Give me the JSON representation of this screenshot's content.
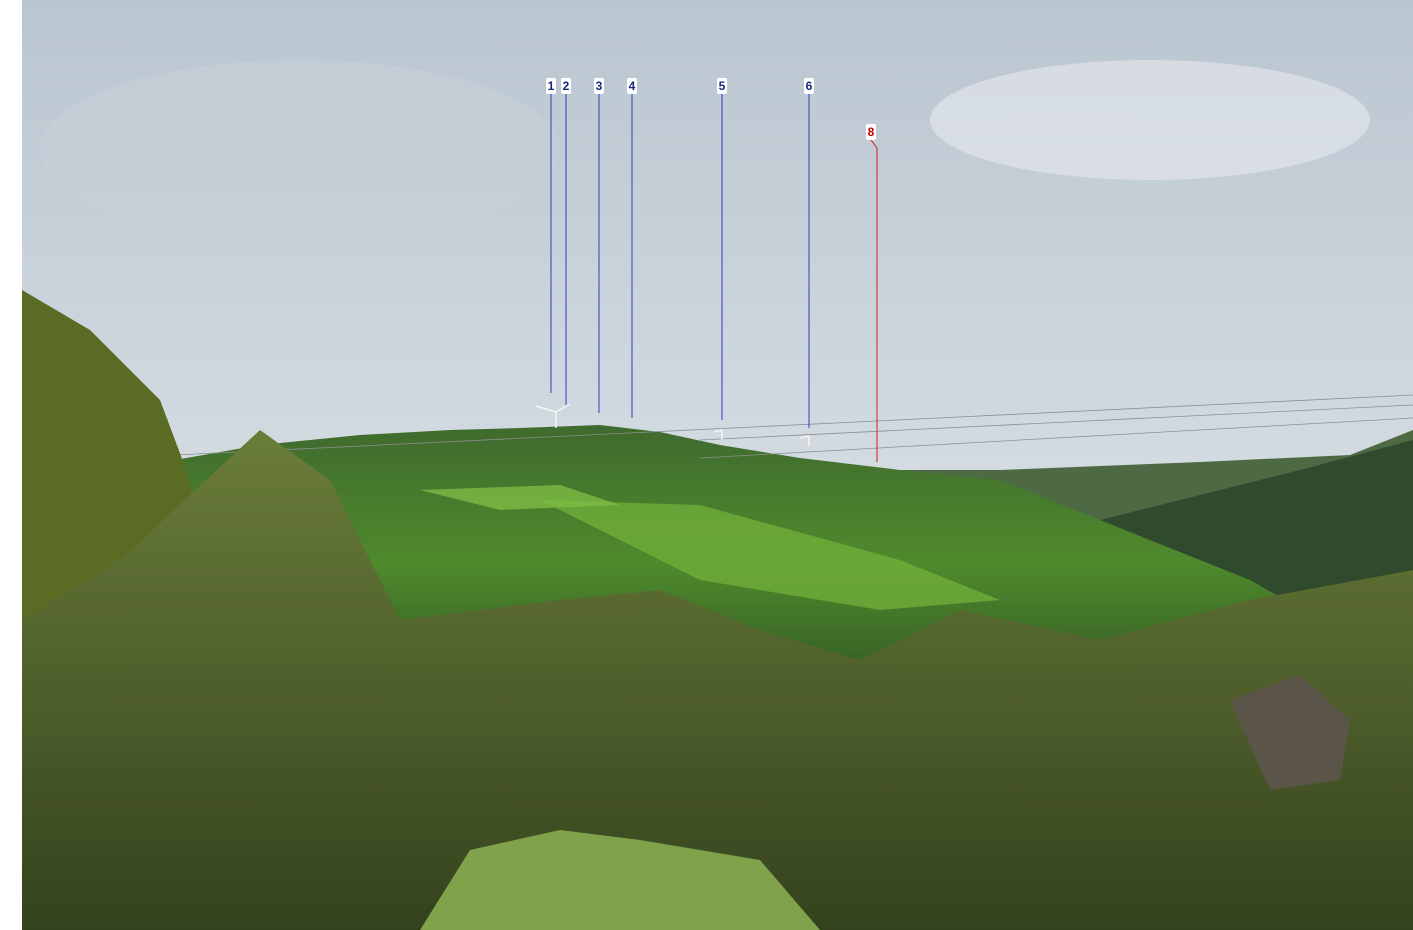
{
  "markers": [
    "1",
    "2",
    "3",
    "4",
    "5",
    "6",
    "8"
  ]
}
